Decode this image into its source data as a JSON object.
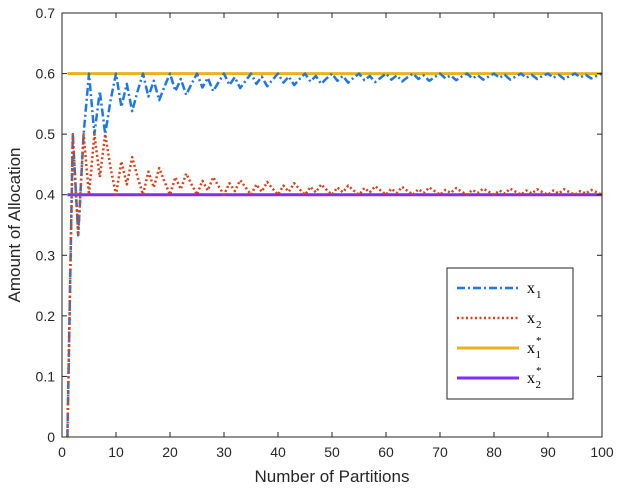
{
  "chart_data": {
    "type": "line",
    "xlabel": "Number of Partitions",
    "ylabel": "Amount of Allocation",
    "xlim": [
      0,
      100
    ],
    "ylim": [
      0,
      0.7
    ],
    "xticks": [
      "0",
      "10",
      "20",
      "30",
      "40",
      "50",
      "60",
      "70",
      "80",
      "90",
      "100"
    ],
    "yticks": [
      "0",
      "0.1",
      "0.2",
      "0.3",
      "0.4",
      "0.5",
      "0.6",
      "0.7"
    ],
    "grid": false,
    "legend_position": "right",
    "x": [
      1,
      2,
      3,
      4,
      5,
      6,
      7,
      8,
      9,
      10,
      11,
      12,
      13,
      14,
      15,
      16,
      17,
      18,
      19,
      20,
      21,
      22,
      23,
      24,
      25,
      26,
      27,
      28,
      29,
      30,
      31,
      32,
      33,
      34,
      35,
      36,
      37,
      38,
      39,
      40,
      41,
      42,
      43,
      44,
      45,
      46,
      47,
      48,
      49,
      50,
      51,
      52,
      53,
      54,
      55,
      56,
      57,
      58,
      59,
      60,
      61,
      62,
      63,
      64,
      65,
      66,
      67,
      68,
      69,
      70,
      71,
      72,
      73,
      74,
      75,
      76,
      77,
      78,
      79,
      80,
      81,
      82,
      83,
      84,
      85,
      86,
      87,
      88,
      89,
      90,
      91,
      92,
      93,
      94,
      95,
      96,
      97,
      98,
      99,
      100
    ],
    "series": [
      {
        "name": "x",
        "subscript": "1",
        "superscript": "",
        "color": "#1f77e5",
        "dash": "dashdot",
        "values": [
          0,
          0.5,
          0.333,
          0.5,
          0.6,
          0.5,
          0.571,
          0.5,
          0.556,
          0.6,
          0.545,
          0.583,
          0.538,
          0.571,
          0.6,
          0.562,
          0.588,
          0.556,
          0.579,
          0.6,
          0.571,
          0.591,
          0.565,
          0.583,
          0.6,
          0.577,
          0.593,
          0.571,
          0.586,
          0.6,
          0.581,
          0.594,
          0.576,
          0.588,
          0.6,
          0.583,
          0.595,
          0.579,
          0.59,
          0.6,
          0.585,
          0.595,
          0.581,
          0.591,
          0.6,
          0.587,
          0.596,
          0.583,
          0.592,
          0.6,
          0.588,
          0.596,
          0.585,
          0.593,
          0.6,
          0.589,
          0.596,
          0.586,
          0.593,
          0.6,
          0.59,
          0.597,
          0.587,
          0.594,
          0.6,
          0.591,
          0.597,
          0.588,
          0.594,
          0.6,
          0.592,
          0.597,
          0.589,
          0.595,
          0.6,
          0.592,
          0.597,
          0.59,
          0.595,
          0.6,
          0.593,
          0.598,
          0.59,
          0.595,
          0.6,
          0.593,
          0.598,
          0.591,
          0.596,
          0.6,
          0.593,
          0.598,
          0.591,
          0.596,
          0.6,
          0.594,
          0.598,
          0.592,
          0.596,
          0.6
        ]
      },
      {
        "name": "x",
        "subscript": "2",
        "superscript": "",
        "color": "#d9401a",
        "dash": "dotted",
        "values": [
          0,
          0.5,
          0.333,
          0.5,
          0.4,
          0.5,
          0.429,
          0.5,
          0.444,
          0.4,
          0.455,
          0.417,
          0.462,
          0.429,
          0.4,
          0.438,
          0.412,
          0.444,
          0.421,
          0.4,
          0.429,
          0.409,
          0.435,
          0.417,
          0.4,
          0.423,
          0.407,
          0.429,
          0.414,
          0.4,
          0.419,
          0.406,
          0.424,
          0.412,
          0.4,
          0.417,
          0.405,
          0.421,
          0.41,
          0.4,
          0.415,
          0.405,
          0.419,
          0.409,
          0.4,
          0.413,
          0.404,
          0.417,
          0.408,
          0.4,
          0.412,
          0.404,
          0.415,
          0.407,
          0.4,
          0.411,
          0.404,
          0.414,
          0.407,
          0.4,
          0.41,
          0.403,
          0.413,
          0.406,
          0.4,
          0.409,
          0.403,
          0.412,
          0.406,
          0.4,
          0.408,
          0.403,
          0.411,
          0.405,
          0.4,
          0.408,
          0.403,
          0.41,
          0.405,
          0.4,
          0.407,
          0.402,
          0.41,
          0.405,
          0.4,
          0.407,
          0.402,
          0.409,
          0.404,
          0.4,
          0.407,
          0.402,
          0.409,
          0.404,
          0.4,
          0.406,
          0.402,
          0.408,
          0.404,
          0.4
        ]
      },
      {
        "name": "x",
        "subscript": "1",
        "superscript": "*",
        "color": "#edb120",
        "dash": "solid",
        "constant": 0.6
      },
      {
        "name": "x",
        "subscript": "2",
        "superscript": "*",
        "color": "#7e2ff0",
        "dash": "solid",
        "constant": 0.4
      }
    ]
  }
}
